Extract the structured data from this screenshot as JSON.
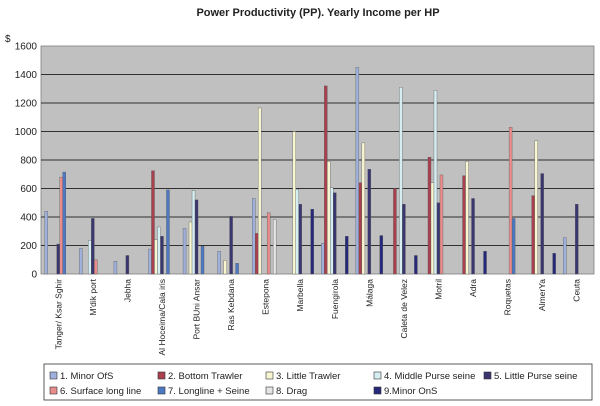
{
  "chart_data": {
    "type": "bar",
    "title": "Power Productivity (PP). Yearly Income per HP",
    "ylabel": "$",
    "ylim": [
      0,
      1600
    ],
    "yticks": [
      0,
      200,
      400,
      600,
      800,
      1000,
      1200,
      1400,
      1600
    ],
    "grid": true,
    "legend_position": "bottom",
    "categories": [
      "Tanger/ Ksar Sghir",
      "M'dik port",
      "Jebha",
      "Al Hoceima/Cala iris",
      "Port BUni Ansar",
      "Ras Kebdana",
      "Estepona",
      "Marbella",
      "Fuengirola",
      "Málaga",
      "Caleta de Velez",
      "Motril",
      "Adra",
      "Roquetas",
      "AlmerYa",
      "Ceuta"
    ],
    "series": [
      {
        "name": "1. Minor  OfS",
        "color": "#9fb0dc",
        "values": [
          440,
          180,
          90,
          175,
          320,
          160,
          530,
          0,
          215,
          1450,
          0,
          0,
          0,
          0,
          0,
          255
        ]
      },
      {
        "name": "2. Bottom Trawler",
        "color": "#a8404e",
        "values": [
          0,
          0,
          0,
          725,
          0,
          0,
          285,
          0,
          1320,
          640,
          600,
          820,
          690,
          0,
          550,
          0
        ]
      },
      {
        "name": "3. Little Trawler",
        "color": "#f8f6d0",
        "values": [
          0,
          0,
          0,
          240,
          365,
          95,
          1165,
          1000,
          790,
          920,
          0,
          640,
          790,
          0,
          935,
          0
        ]
      },
      {
        "name": "4. Middle Purse seine",
        "color": "#d5eef2",
        "values": [
          0,
          235,
          0,
          330,
          585,
          0,
          0,
          595,
          605,
          0,
          1310,
          1290,
          0,
          0,
          0,
          0
        ]
      },
      {
        "name": "5. Little Purse seine",
        "color": "#3a3670",
        "values": [
          210,
          390,
          130,
          265,
          520,
          405,
          0,
          490,
          570,
          735,
          490,
          500,
          530,
          0,
          705,
          490
        ]
      },
      {
        "name": "6. Surface long line",
        "color": "#e88c8c",
        "values": [
          680,
          100,
          0,
          0,
          0,
          0,
          430,
          0,
          0,
          0,
          0,
          695,
          0,
          1030,
          0,
          0
        ]
      },
      {
        "name": "7. Longline + Seine",
        "color": "#4c78c4",
        "values": [
          715,
          0,
          0,
          590,
          195,
          75,
          0,
          0,
          0,
          0,
          0,
          0,
          0,
          390,
          0,
          0
        ]
      },
      {
        "name": "8. Drag",
        "color": "#e4e4e4",
        "values": [
          0,
          0,
          0,
          0,
          0,
          0,
          380,
          0,
          0,
          0,
          0,
          0,
          0,
          0,
          0,
          0
        ]
      },
      {
        "name": "9.Minor OnS",
        "color": "#26287a",
        "values": [
          0,
          0,
          0,
          0,
          0,
          0,
          0,
          455,
          265,
          270,
          130,
          0,
          160,
          0,
          145,
          0
        ]
      }
    ]
  }
}
